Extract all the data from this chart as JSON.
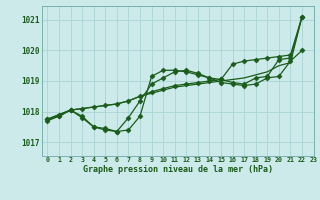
{
  "title": "Graphe pression niveau de la mer (hPa)",
  "bg_color": "#cceaea",
  "grid_color": "#aad4d4",
  "line_color": "#1a5c1a",
  "xlim": [
    -0.5,
    23
  ],
  "ylim": [
    1016.55,
    1021.45
  ],
  "yticks": [
    1017,
    1018,
    1019,
    1020,
    1021
  ],
  "xtick_labels": [
    "0",
    "1",
    "2",
    "3",
    "4",
    "5",
    "6",
    "7",
    "8",
    "9",
    "10",
    "11",
    "12",
    "13",
    "14",
    "15",
    "16",
    "17",
    "18",
    "19",
    "20",
    "21",
    "22",
    "23"
  ],
  "line1_x": [
    0,
    1,
    2,
    3,
    4,
    5,
    6,
    7,
    8,
    9,
    10,
    11,
    12,
    13,
    14,
    15,
    16,
    17,
    18,
    19,
    20,
    21,
    22
  ],
  "line1_y": [
    1017.7,
    1017.85,
    1018.05,
    1017.85,
    1017.5,
    1017.4,
    1017.35,
    1017.8,
    1018.35,
    1018.9,
    1019.1,
    1019.3,
    1019.35,
    1019.25,
    1019.1,
    1019.05,
    1018.95,
    1018.9,
    1019.1,
    1019.15,
    1019.7,
    1019.75,
    1021.1
  ],
  "line2_x": [
    0,
    1,
    2,
    3,
    4,
    5,
    6,
    7,
    8,
    9,
    10,
    11,
    12,
    13,
    14,
    15,
    16,
    17,
    18,
    19,
    20,
    21,
    22
  ],
  "line2_y": [
    1017.75,
    1017.9,
    1018.05,
    1018.1,
    1018.15,
    1018.2,
    1018.25,
    1018.35,
    1018.5,
    1018.65,
    1018.75,
    1018.85,
    1018.9,
    1018.95,
    1019.0,
    1019.05,
    1019.55,
    1019.65,
    1019.7,
    1019.75,
    1019.8,
    1019.85,
    1021.1
  ],
  "line3_x": [
    0,
    1,
    2,
    3,
    4,
    5,
    6,
    7,
    8,
    9,
    10,
    11,
    12,
    13,
    14,
    15,
    16,
    17,
    18,
    19,
    20,
    21,
    22
  ],
  "line3_y": [
    1017.75,
    1017.9,
    1018.05,
    1018.1,
    1018.15,
    1018.2,
    1018.25,
    1018.35,
    1018.5,
    1018.6,
    1018.7,
    1018.8,
    1018.85,
    1018.9,
    1018.95,
    1019.0,
    1019.05,
    1019.1,
    1019.2,
    1019.3,
    1019.5,
    1019.6,
    1021.1
  ],
  "line4_x": [
    0,
    1,
    2,
    3,
    4,
    5,
    6,
    7,
    8,
    9,
    10,
    11,
    12,
    13,
    14,
    15,
    16,
    17,
    18,
    19,
    20,
    21,
    22
  ],
  "line4_y": [
    1017.75,
    1017.85,
    1018.05,
    1017.8,
    1017.5,
    1017.45,
    1017.35,
    1017.4,
    1017.85,
    1019.15,
    1019.35,
    1019.35,
    1019.3,
    1019.2,
    1019.1,
    1018.95,
    1018.9,
    1018.85,
    1018.9,
    1019.1,
    1019.15,
    1019.65,
    1020.0
  ]
}
